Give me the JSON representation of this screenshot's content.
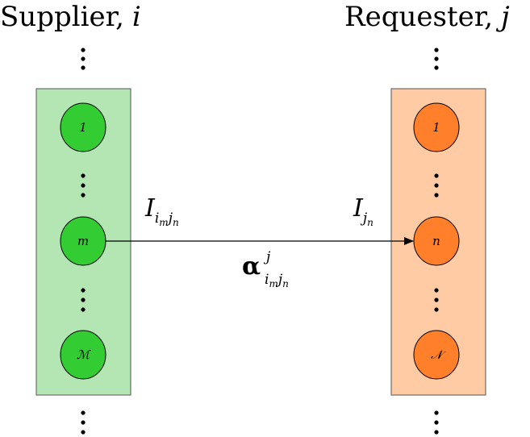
{
  "supplier": {
    "title": "Supplier,",
    "var": "i",
    "fill": "#b3e6b3",
    "node_fill": "#33cc33",
    "nodes": [
      "1",
      "m",
      "ℳ"
    ]
  },
  "requester": {
    "title": "Requester,",
    "var": "j",
    "fill": "#ffcba4",
    "node_fill": "#ff7f2a",
    "nodes": [
      "1",
      "n",
      "𝒩"
    ]
  },
  "edge": {
    "source_label": {
      "main": "I",
      "sub1": "i",
      "sub1sub": "m",
      "sub2": "j",
      "sub2sub": "n"
    },
    "target_label": {
      "main": "I",
      "sub": "j",
      "subsub": "n"
    },
    "weight_label": {
      "main": "α",
      "sup": "j",
      "sub1": "i",
      "sub1sub": "m",
      "sub2": "j",
      "sub2sub": "n"
    }
  }
}
